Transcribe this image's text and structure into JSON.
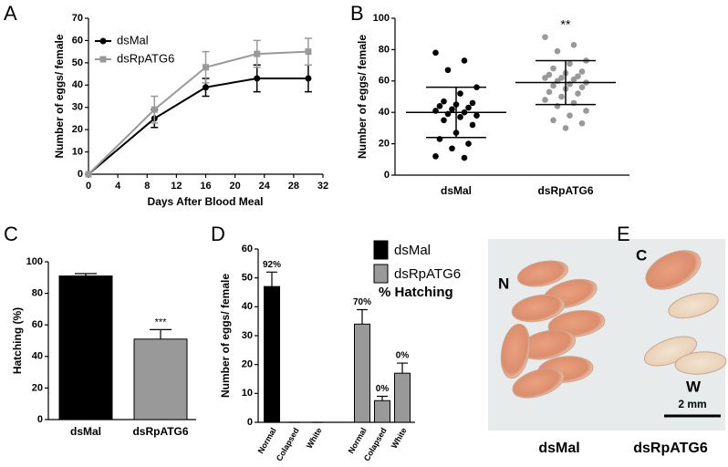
{
  "chart_data": [
    {
      "type": "line",
      "panel": "A",
      "xlabel": "Days After Blood Meal",
      "ylabel": "Number of eggs/ female",
      "x": [
        0,
        9,
        16,
        23,
        30
      ],
      "series": [
        {
          "name": "dsMal",
          "color": "#000000",
          "marker": "circle",
          "values": [
            0,
            25,
            39,
            43,
            43
          ],
          "errors": [
            0,
            4,
            4,
            6,
            6
          ]
        },
        {
          "name": "dsRpATG6",
          "color": "#999999",
          "marker": "square",
          "values": [
            0,
            29,
            48,
            54,
            55
          ],
          "errors": [
            0,
            6,
            7,
            6,
            6
          ]
        }
      ],
      "xlim": [
        0,
        32
      ],
      "xticks": [
        0,
        4,
        8,
        12,
        16,
        20,
        24,
        28,
        32
      ],
      "ylim": [
        0,
        70
      ],
      "yticks": [
        0,
        10,
        20,
        30,
        40,
        50,
        60,
        70
      ]
    },
    {
      "type": "strip",
      "panel": "B",
      "ylabel": "Number of eggs/ female",
      "categories": [
        "dsMal",
        "dsRpATG6"
      ],
      "groups": [
        {
          "color": "#000000",
          "values": [
            78,
            73,
            67,
            56,
            52,
            47,
            46,
            45,
            44,
            43,
            42,
            41,
            40,
            39,
            38,
            37,
            35,
            32,
            27,
            23,
            20,
            17,
            12,
            11
          ],
          "mean": 40,
          "sd": 16
        },
        {
          "color": "#999999",
          "values": [
            88,
            83,
            79,
            73,
            71,
            68,
            66,
            65,
            64,
            63,
            62,
            62,
            61,
            60,
            59,
            58,
            57,
            56,
            55,
            53,
            52,
            50,
            48,
            46,
            44,
            41,
            38,
            35,
            33,
            30
          ],
          "mean": 59,
          "sd": 14,
          "annotation": "**"
        }
      ],
      "ylim": [
        0,
        100
      ],
      "yticks": [
        0,
        20,
        40,
        60,
        80,
        100
      ]
    },
    {
      "type": "bar",
      "panel": "C",
      "ylabel": "Hatching (%)",
      "categories": [
        "dsMal",
        "dsRpATG6"
      ],
      "values": [
        91,
        51
      ],
      "errors": [
        1.5,
        6
      ],
      "colors": [
        "#000000",
        "#999999"
      ],
      "annotations": [
        null,
        "***"
      ],
      "ylim": [
        0,
        100
      ],
      "yticks": [
        0,
        20,
        40,
        60,
        80,
        100
      ]
    },
    {
      "type": "grouped-bar",
      "panel": "D",
      "ylabel": "Number of eggs/ female",
      "categories": [
        "Normal",
        "Colapsed",
        "White"
      ],
      "series": [
        {
          "name": "dsMal",
          "color": "#000000",
          "values": [
            47,
            0,
            0
          ],
          "errors": [
            5,
            0,
            0
          ],
          "hatching": [
            92,
            null,
            null
          ],
          "hatching_labels": [
            "92%",
            null,
            null
          ]
        },
        {
          "name": "dsRpATG6",
          "color": "#999999",
          "values": [
            34,
            7.5,
            17
          ],
          "errors": [
            5,
            1.5,
            3.5
          ],
          "hatching": [
            70,
            0,
            0
          ],
          "hatching_labels": [
            "70%",
            "0%",
            "0%"
          ]
        }
      ],
      "hatching_name": "% Hatching",
      "ylim": [
        0,
        60
      ],
      "yticks": [
        0,
        10,
        20,
        30,
        40,
        50,
        60
      ]
    },
    {
      "type": "image",
      "panel": "E",
      "labels": [
        "N",
        "C",
        "W"
      ],
      "scale": "2 mm",
      "captions": [
        "dsMal",
        "dsRpATG6"
      ]
    }
  ]
}
